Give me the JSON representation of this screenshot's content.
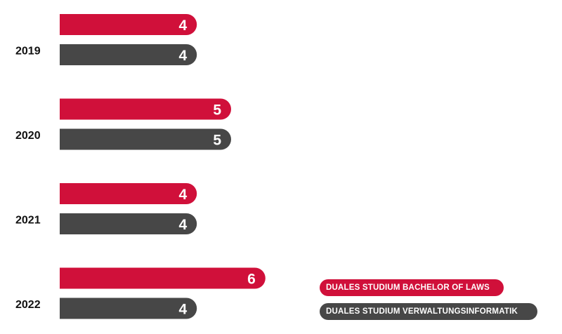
{
  "chart_data": {
    "type": "bar",
    "orientation": "horizontal",
    "categories": [
      "2019",
      "2020",
      "2021",
      "2022"
    ],
    "series": [
      {
        "name": "DUALES STUDIUM BACHELOR OF LAWS",
        "color": "#d0103a",
        "values": [
          4,
          5,
          4,
          6
        ]
      },
      {
        "name": "DUALES STUDIUM VERWALTUNGSINFORMATIK",
        "color": "#474747",
        "values": [
          4,
          5,
          4,
          4
        ]
      }
    ],
    "data_labels": true,
    "grid": false,
    "legend_position": "bottom-right"
  }
}
